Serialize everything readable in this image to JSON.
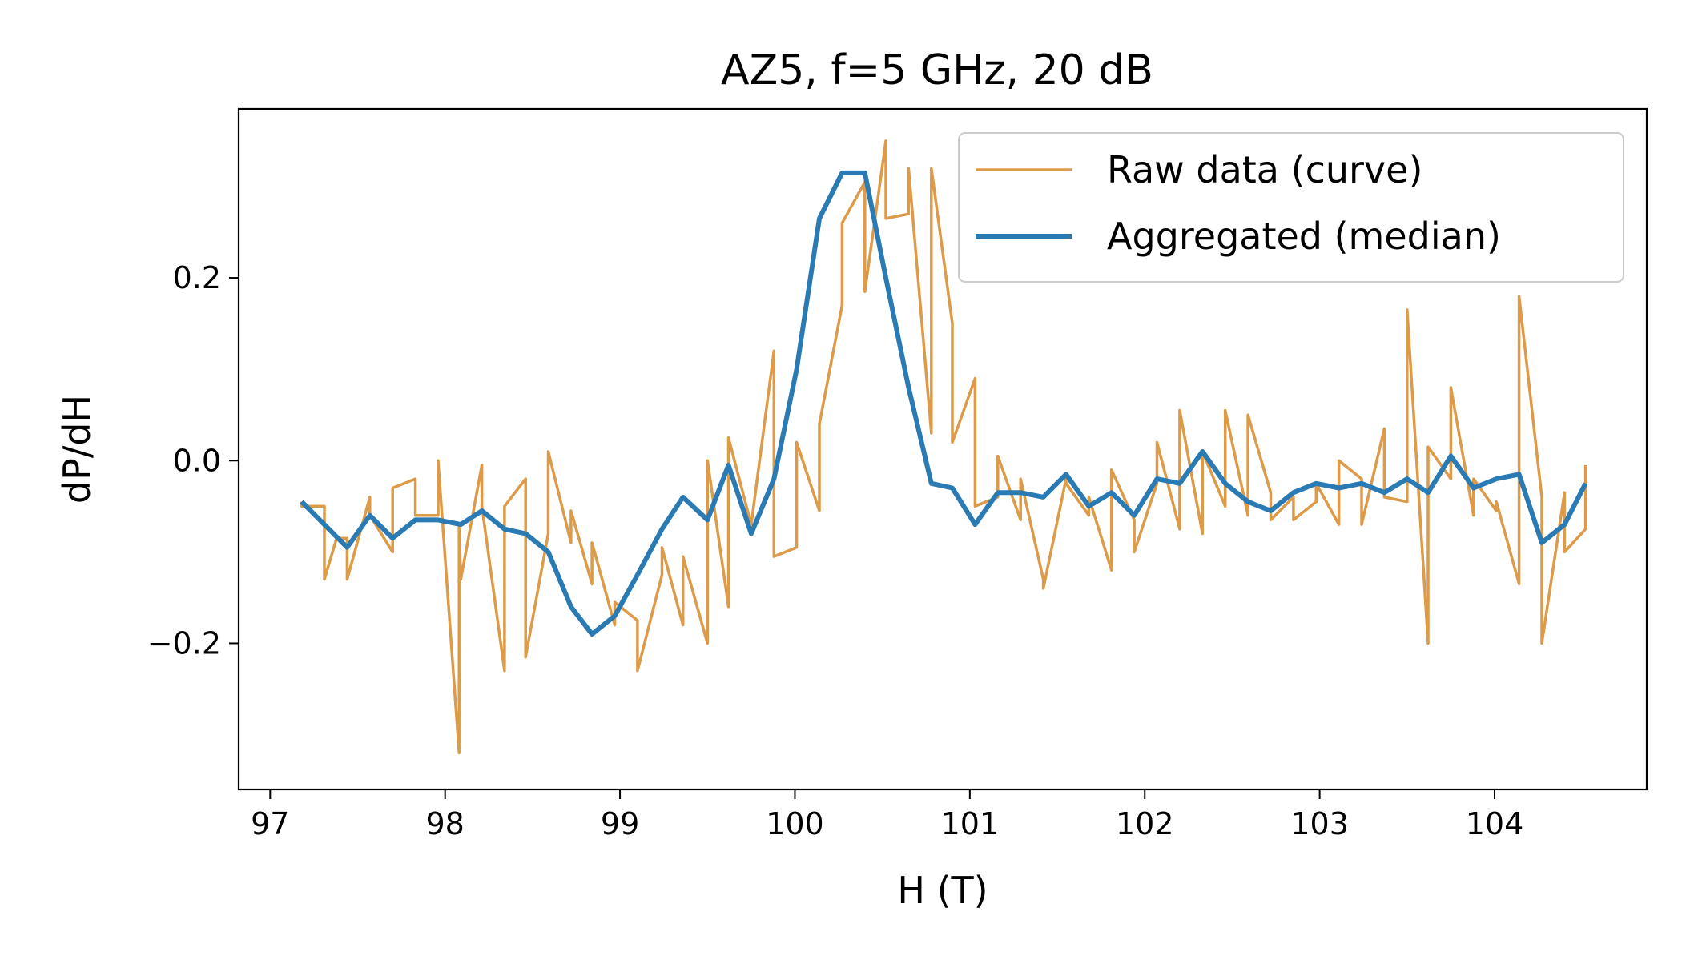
{
  "chart_data": {
    "type": "line",
    "title": "AZ5, f=5 GHz, 20 dB",
    "xlabel": "H (T)",
    "ylabel": "dP/dH",
    "xlim": [
      96.82,
      104.87
    ],
    "ylim": [
      -0.36,
      0.385
    ],
    "x_ticks": [
      97,
      98,
      99,
      100,
      101,
      102,
      103,
      104
    ],
    "y_ticks": [
      -0.2,
      0.0,
      0.2
    ],
    "x_tick_labels": [
      "97",
      "98",
      "99",
      "100",
      "101",
      "102",
      "103",
      "104"
    ],
    "y_tick_labels": [
      "−0.2",
      "0.0",
      "0.2"
    ],
    "grid": false,
    "legend_position": "upper right",
    "series": [
      {
        "name": "Raw data (curve)",
        "color": "#dd9a48",
        "x": [
          97.18,
          97.18,
          97.31,
          97.31,
          97.38,
          97.44,
          97.44,
          97.57,
          97.57,
          97.7,
          97.7,
          97.83,
          97.83,
          97.96,
          97.96,
          98.08,
          98.08,
          98.09,
          98.21,
          98.21,
          98.34,
          98.34,
          98.46,
          98.46,
          98.59,
          98.59,
          98.72,
          98.72,
          98.84,
          98.84,
          98.97,
          98.97,
          99.1,
          99.1,
          99.24,
          99.24,
          99.36,
          99.36,
          99.5,
          99.5,
          99.62,
          99.62,
          99.75,
          99.75,
          99.88,
          99.88,
          100.01,
          100.01,
          100.14,
          100.14,
          100.27,
          100.27,
          100.4,
          100.4,
          100.52,
          100.52,
          100.65,
          100.65,
          100.78,
          100.78,
          100.9,
          100.9,
          101.03,
          101.03,
          101.16,
          101.16,
          101.29,
          101.29,
          101.42,
          101.42,
          101.55,
          101.55,
          101.68,
          101.68,
          101.81,
          101.81,
          101.94,
          101.94,
          102.07,
          102.07,
          102.2,
          102.2,
          102.33,
          102.33,
          102.46,
          102.46,
          102.59,
          102.59,
          102.72,
          102.72,
          102.85,
          102.85,
          102.98,
          102.98,
          103.11,
          103.11,
          103.24,
          103.24,
          103.37,
          103.37,
          103.5,
          103.5,
          103.62,
          103.62,
          103.75,
          103.75,
          103.88,
          103.88,
          104.01,
          104.01,
          104.14,
          104.14,
          104.27,
          104.27,
          104.4,
          104.4,
          104.52,
          104.52
        ],
        "y": [
          -0.045,
          -0.05,
          -0.05,
          -0.13,
          -0.085,
          -0.085,
          -0.13,
          -0.04,
          -0.06,
          -0.1,
          -0.03,
          -0.02,
          -0.06,
          -0.06,
          0.0,
          -0.32,
          -0.07,
          -0.13,
          -0.005,
          -0.05,
          -0.23,
          -0.05,
          -0.02,
          -0.215,
          -0.08,
          0.01,
          -0.09,
          -0.055,
          -0.135,
          -0.09,
          -0.18,
          -0.155,
          -0.175,
          -0.23,
          -0.125,
          -0.095,
          -0.18,
          -0.105,
          -0.2,
          0.0,
          -0.16,
          0.025,
          -0.07,
          -0.07,
          0.12,
          -0.105,
          -0.095,
          0.02,
          -0.055,
          0.04,
          0.17,
          0.26,
          0.305,
          0.185,
          0.35,
          0.265,
          0.27,
          0.32,
          0.03,
          0.32,
          0.15,
          0.02,
          0.09,
          -0.05,
          -0.04,
          0.005,
          -0.065,
          -0.02,
          -0.13,
          -0.14,
          -0.02,
          -0.025,
          -0.06,
          -0.04,
          -0.12,
          -0.01,
          -0.065,
          -0.1,
          -0.025,
          0.02,
          -0.075,
          0.055,
          -0.08,
          0.01,
          -0.05,
          0.055,
          -0.06,
          0.05,
          -0.035,
          -0.065,
          -0.04,
          -0.065,
          -0.045,
          -0.025,
          -0.07,
          0.0,
          -0.02,
          -0.07,
          0.035,
          -0.04,
          -0.045,
          0.165,
          -0.2,
          0.015,
          -0.02,
          0.08,
          -0.06,
          -0.02,
          -0.055,
          -0.045,
          -0.135,
          0.18,
          -0.04,
          -0.2,
          -0.035,
          -0.1,
          -0.075,
          -0.005
        ]
      },
      {
        "name": "Aggregated (median)",
        "color": "#2a7ab4",
        "x": [
          97.18,
          97.31,
          97.44,
          97.57,
          97.7,
          97.83,
          97.96,
          98.09,
          98.21,
          98.34,
          98.46,
          98.59,
          98.72,
          98.84,
          98.97,
          99.1,
          99.24,
          99.36,
          99.5,
          99.62,
          99.75,
          99.88,
          100.01,
          100.14,
          100.27,
          100.4,
          100.52,
          100.65,
          100.78,
          100.9,
          101.03,
          101.16,
          101.29,
          101.42,
          101.55,
          101.68,
          101.81,
          101.94,
          102.07,
          102.2,
          102.33,
          102.46,
          102.59,
          102.72,
          102.85,
          102.98,
          103.11,
          103.24,
          103.37,
          103.5,
          103.62,
          103.75,
          103.88,
          104.01,
          104.14,
          104.27,
          104.4,
          104.52
        ],
        "y": [
          -0.045,
          -0.07,
          -0.095,
          -0.06,
          -0.085,
          -0.065,
          -0.065,
          -0.07,
          -0.055,
          -0.075,
          -0.08,
          -0.1,
          -0.16,
          -0.19,
          -0.17,
          -0.125,
          -0.075,
          -0.04,
          -0.065,
          -0.005,
          -0.08,
          -0.02,
          0.1,
          0.265,
          0.315,
          0.315,
          0.2,
          0.08,
          -0.025,
          -0.03,
          -0.07,
          -0.035,
          -0.035,
          -0.04,
          -0.015,
          -0.05,
          -0.035,
          -0.06,
          -0.02,
          -0.025,
          0.01,
          -0.025,
          -0.045,
          -0.055,
          -0.035,
          -0.025,
          -0.03,
          -0.025,
          -0.035,
          -0.02,
          -0.035,
          0.005,
          -0.03,
          -0.02,
          -0.015,
          -0.09,
          -0.07,
          -0.025
        ]
      }
    ]
  }
}
